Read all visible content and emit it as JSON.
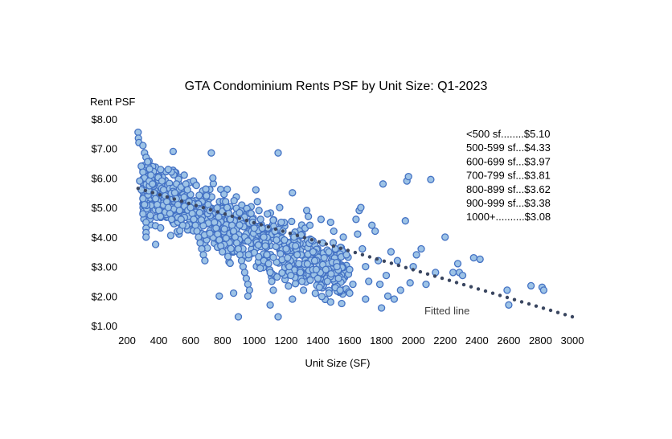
{
  "chart_data": {
    "type": "scatter",
    "title": "GTA Condominium Rents PSF by Unit Size: Q1-2023",
    "xlabel": "Unit Size (SF)",
    "ylabel": "Rent PSF",
    "xlim": [
      200,
      3000
    ],
    "ylim": [
      1.0,
      8.0
    ],
    "x_ticks": [
      "200",
      "400",
      "600",
      "800",
      "1000",
      "1200",
      "1400",
      "1600",
      "1800",
      "2000",
      "2200",
      "2400",
      "2600",
      "2800",
      "3000"
    ],
    "y_ticks": [
      "$1.00",
      "$2.00",
      "$3.00",
      "$4.00",
      "$5.00",
      "$6.00",
      "$7.00",
      "$8.00"
    ],
    "grid": false,
    "legend_position": "top-right",
    "annotation": "Fitted line",
    "summary_table": [
      "<500 sf........$5.10",
      "500-599 sf...$4.33",
      "600-699 sf...$3.97",
      "700-799 sf...$3.81",
      "800-899 sf...$3.62",
      "900-999 sf...$3.38",
      "1000+..........$3.08"
    ],
    "fitted_line": {
      "x": [
        270,
        3000
      ],
      "y": [
        5.65,
        1.3
      ]
    },
    "series": [
      {
        "values": [
          [
            270,
            7.55
          ],
          [
            272,
            7.35
          ],
          [
            275,
            7.2
          ],
          [
            300,
            7.1
          ],
          [
            310,
            6.85
          ],
          [
            320,
            6.7
          ],
          [
            330,
            6.55
          ],
          [
            290,
            6.4
          ],
          [
            300,
            6.2
          ],
          [
            310,
            6.0
          ],
          [
            340,
            5.9
          ],
          [
            350,
            6.1
          ],
          [
            280,
            5.9
          ],
          [
            290,
            5.6
          ],
          [
            300,
            5.3
          ],
          [
            310,
            5.1
          ],
          [
            320,
            4.5
          ],
          [
            320,
            4.3
          ],
          [
            320,
            4.15
          ],
          [
            320,
            4.0
          ],
          [
            380,
            3.75
          ],
          [
            360,
            5.8
          ],
          [
            370,
            5.5
          ],
          [
            380,
            5.3
          ],
          [
            390,
            5.1
          ],
          [
            400,
            4.9
          ],
          [
            410,
            4.7
          ],
          [
            420,
            5.9
          ],
          [
            430,
            5.6
          ],
          [
            440,
            5.4
          ],
          [
            450,
            5.2
          ],
          [
            460,
            5.0
          ],
          [
            470,
            4.8
          ],
          [
            480,
            4.6
          ],
          [
            490,
            6.9
          ],
          [
            500,
            5.5
          ],
          [
            510,
            5.3
          ],
          [
            520,
            5.1
          ],
          [
            530,
            4.9
          ],
          [
            540,
            4.6
          ],
          [
            550,
            4.4
          ],
          [
            560,
            6.1
          ],
          [
            570,
            5.8
          ],
          [
            580,
            5.6
          ],
          [
            590,
            5.2
          ],
          [
            600,
            5.0
          ],
          [
            610,
            4.8
          ],
          [
            620,
            4.6
          ],
          [
            630,
            4.4
          ],
          [
            640,
            4.2
          ],
          [
            650,
            4.0
          ],
          [
            660,
            3.8
          ],
          [
            670,
            3.6
          ],
          [
            680,
            3.4
          ],
          [
            690,
            3.2
          ],
          [
            700,
            5.4
          ],
          [
            710,
            5.1
          ],
          [
            720,
            4.9
          ],
          [
            730,
            6.85
          ],
          [
            740,
            6.0
          ],
          [
            750,
            4.5
          ],
          [
            760,
            4.3
          ],
          [
            770,
            4.1
          ],
          [
            780,
            3.9
          ],
          [
            790,
            3.7
          ],
          [
            800,
            3.5
          ],
          [
            810,
            5.45
          ],
          [
            820,
            5.2
          ],
          [
            830,
            5.0
          ],
          [
            840,
            4.8
          ],
          [
            850,
            4.6
          ],
          [
            860,
            4.4
          ],
          [
            870,
            4.2
          ],
          [
            880,
            4.0
          ],
          [
            890,
            3.8
          ],
          [
            900,
            3.6
          ],
          [
            910,
            3.4
          ],
          [
            920,
            3.2
          ],
          [
            930,
            3.0
          ],
          [
            940,
            2.8
          ],
          [
            950,
            2.6
          ],
          [
            960,
            2.4
          ],
          [
            970,
            2.2
          ],
          [
            980,
            4.8
          ],
          [
            990,
            4.5
          ],
          [
            1000,
            4.3
          ],
          [
            1010,
            5.6
          ],
          [
            1020,
            5.2
          ],
          [
            1030,
            4.9
          ],
          [
            1040,
            4.6
          ],
          [
            1050,
            4.3
          ],
          [
            1060,
            4.0
          ],
          [
            1070,
            3.7
          ],
          [
            1080,
            3.4
          ],
          [
            1090,
            3.1
          ],
          [
            1100,
            2.8
          ],
          [
            1110,
            2.5
          ],
          [
            1120,
            2.2
          ],
          [
            1130,
            4.2
          ],
          [
            1140,
            3.9
          ],
          [
            1150,
            6.85
          ],
          [
            1160,
            5.0
          ],
          [
            1170,
            4.5
          ],
          [
            1180,
            4.2
          ],
          [
            1190,
            3.9
          ],
          [
            1200,
            3.6
          ],
          [
            1210,
            3.3
          ],
          [
            1220,
            3.0
          ],
          [
            1230,
            2.7
          ],
          [
            1240,
            5.5
          ],
          [
            1250,
            4.0
          ],
          [
            1260,
            3.7
          ],
          [
            1270,
            3.4
          ],
          [
            1280,
            3.1
          ],
          [
            1290,
            2.8
          ],
          [
            1300,
            2.5
          ],
          [
            1310,
            2.2
          ],
          [
            1320,
            4.3
          ],
          [
            1330,
            4.9
          ],
          [
            1340,
            4.7
          ],
          [
            1350,
            4.4
          ],
          [
            1360,
            3.9
          ],
          [
            1370,
            3.5
          ],
          [
            1380,
            3.2
          ],
          [
            1390,
            2.9
          ],
          [
            1400,
            2.6
          ],
          [
            1410,
            2.3
          ],
          [
            1420,
            4.6
          ],
          [
            1430,
            3.8
          ],
          [
            1440,
            3.3
          ],
          [
            1450,
            2.9
          ],
          [
            1460,
            2.5
          ],
          [
            1470,
            2.1
          ],
          [
            1480,
            4.5
          ],
          [
            1500,
            4.2
          ],
          [
            1510,
            3.6
          ],
          [
            1520,
            3.0
          ],
          [
            1530,
            2.6
          ],
          [
            1540,
            2.2
          ],
          [
            1550,
            1.75
          ],
          [
            1560,
            4.0
          ],
          [
            1580,
            3.4
          ],
          [
            1600,
            2.9
          ],
          [
            1620,
            2.4
          ],
          [
            1640,
            4.6
          ],
          [
            1650,
            4.1
          ],
          [
            1660,
            4.9
          ],
          [
            1670,
            5.0
          ],
          [
            1680,
            3.6
          ],
          [
            1700,
            3.0
          ],
          [
            1720,
            2.5
          ],
          [
            1740,
            4.4
          ],
          [
            1760,
            4.2
          ],
          [
            1780,
            3.2
          ],
          [
            1790,
            2.4
          ],
          [
            1800,
            1.6
          ],
          [
            1810,
            5.8
          ],
          [
            1830,
            2.7
          ],
          [
            1840,
            2.0
          ],
          [
            1860,
            3.5
          ],
          [
            1880,
            1.9
          ],
          [
            1900,
            3.2
          ],
          [
            1920,
            2.2
          ],
          [
            1950,
            4.55
          ],
          [
            1960,
            5.9
          ],
          [
            1970,
            6.05
          ],
          [
            1980,
            2.45
          ],
          [
            2000,
            3.0
          ],
          [
            2020,
            3.4
          ],
          [
            2050,
            3.6
          ],
          [
            2080,
            2.4
          ],
          [
            2110,
            5.95
          ],
          [
            2140,
            2.8
          ],
          [
            2200,
            4.0
          ],
          [
            2250,
            2.8
          ],
          [
            2280,
            3.1
          ],
          [
            2290,
            2.8
          ],
          [
            2310,
            2.7
          ],
          [
            2380,
            3.3
          ],
          [
            2420,
            3.25
          ],
          [
            2590,
            2.2
          ],
          [
            2600,
            1.7
          ],
          [
            2740,
            2.35
          ],
          [
            2810,
            2.3
          ],
          [
            2820,
            2.2
          ],
          [
            900,
            1.3
          ],
          [
            1150,
            1.3
          ],
          [
            780,
            2.0
          ],
          [
            870,
            2.1
          ],
          [
            1100,
            1.7
          ],
          [
            1240,
            1.9
          ],
          [
            960,
            2.0
          ],
          [
            1480,
            1.8
          ],
          [
            1600,
            2.1
          ],
          [
            1700,
            1.9
          ]
        ]
      }
    ]
  }
}
